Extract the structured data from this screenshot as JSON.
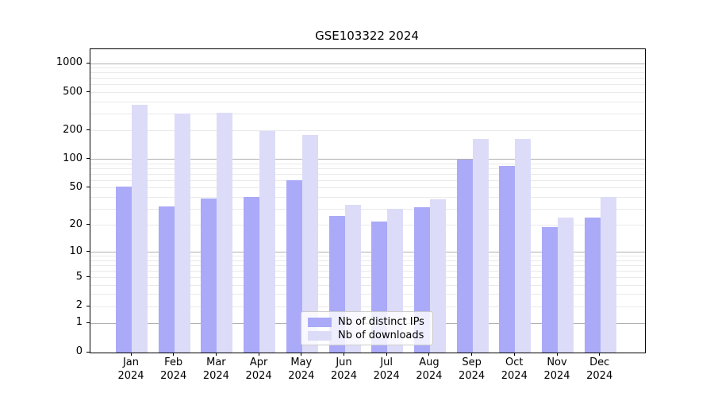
{
  "title": "GSE103322 2024",
  "chart_data": {
    "type": "bar",
    "title": "GSE103322 2024",
    "categories": [
      "Jan",
      "Feb",
      "Mar",
      "Apr",
      "May",
      "Jun",
      "Jul",
      "Aug",
      "Sep",
      "Oct",
      "Nov",
      "Dec"
    ],
    "year_label": "2024",
    "series": [
      {
        "name": "Nb of distinct IPs",
        "color": "#aaaaf8",
        "values": [
          52,
          32,
          39,
          40,
          60,
          25,
          22,
          31,
          100,
          85,
          19,
          24
        ]
      },
      {
        "name": "Nb of downloads",
        "color": "#dcdcf8",
        "values": [
          370,
          300,
          305,
          197,
          181,
          33,
          30,
          38,
          165,
          165,
          24,
          40
        ]
      }
    ],
    "xlabel": "",
    "ylabel": "",
    "yscale": "log1p",
    "ylim": [
      0,
      1409
    ],
    "yticks_labeled": [
      "0",
      "1",
      "2",
      "5",
      "10",
      "20",
      "50",
      "100",
      "200",
      "500",
      "1000"
    ],
    "ytick_values": [
      0,
      1,
      2,
      5,
      10,
      20,
      50,
      100,
      200,
      500,
      1000
    ],
    "gridlines_major": [
      1,
      10,
      100,
      1000
    ],
    "gridlines_minor": [
      2,
      3,
      4,
      5,
      6,
      7,
      8,
      9,
      20,
      30,
      40,
      50,
      60,
      70,
      80,
      90,
      200,
      300,
      400,
      500,
      600,
      700,
      800,
      900
    ],
    "grid_color_major": "#b0b0b0",
    "grid_color_minor": "#e9e9e9",
    "axis_color": "#000000",
    "legend_position": "inside-bottom-center"
  },
  "legend": {
    "items": [
      {
        "label": "Nb of distinct IPs"
      },
      {
        "label": "Nb of downloads"
      }
    ]
  }
}
